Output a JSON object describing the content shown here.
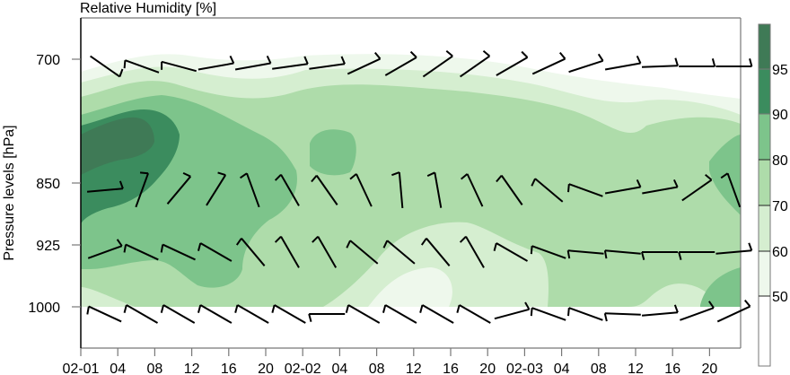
{
  "chart_data": {
    "type": "heatmap",
    "title": "Relative Humidity [%]",
    "xlabel": "",
    "ylabel": "Pressure levels [hPa]",
    "x_ticks": [
      "02-01",
      "04",
      "08",
      "12",
      "16",
      "20",
      "02-02",
      "04",
      "08",
      "12",
      "16",
      "20",
      "02-03",
      "04",
      "08",
      "12",
      "16",
      "20"
    ],
    "y_ticks": [
      "700",
      "850",
      "925",
      "1000"
    ],
    "y_levels_hPa": [
      700,
      850,
      925,
      1000
    ],
    "ylim": [
      1050,
      650
    ],
    "colorbar": {
      "levels": [
        50,
        60,
        70,
        80,
        90,
        95
      ],
      "tick_labels": [
        "50",
        "60",
        "70",
        "80",
        "90",
        "95"
      ],
      "colors": [
        "#ffffff",
        "#eef8ec",
        "#d5eed0",
        "#aedcaa",
        "#7dc48b",
        "#3b8c5e",
        "#3f7a56"
      ]
    },
    "fill_levels": [
      {
        "band": "50-60",
        "color": "#eef8ec"
      },
      {
        "band": "60-70",
        "color": "#d5eed0"
      },
      {
        "band": "70-80",
        "color": "#aedcaa"
      },
      {
        "band": "80-90",
        "color": "#7dc48b"
      },
      {
        "band": "90-95",
        "color": "#3b8c5e"
      },
      {
        "band": ">95",
        "color": "#3f7a56"
      }
    ],
    "wind_barbs": {
      "note": "wind barbs at each pressure level every 4 hours; angle = staff direction in degrees (screen coords, 0=right, clockwise positive)",
      "times": [
        "02-01 00",
        "04",
        "08",
        "12",
        "16",
        "20",
        "02-02 00",
        "04",
        "08",
        "12",
        "16",
        "20",
        "02-03 00",
        "04",
        "08",
        "12",
        "16",
        "20"
      ],
      "levels": {
        "700": [
          -35,
          160,
          165,
          10,
          10,
          8,
          8,
          25,
          30,
          35,
          35,
          30,
          25,
          18,
          10,
          2,
          0,
          0
        ],
        "850": [
          5,
          70,
          50,
          58,
          110,
          120,
          125,
          115,
          95,
          100,
          115,
          125,
          140,
          160,
          10,
          10,
          35,
          110
        ],
        "925": [
          20,
          155,
          155,
          150,
          130,
          120,
          120,
          140,
          140,
          130,
          120,
          150,
          160,
          175,
          175,
          180,
          180,
          5
        ],
        "1000": [
          155,
          150,
          150,
          150,
          150,
          150,
          180,
          150,
          150,
          150,
          150,
          15,
          160,
          160,
          178,
          5,
          20,
          25
        ]
      }
    }
  }
}
